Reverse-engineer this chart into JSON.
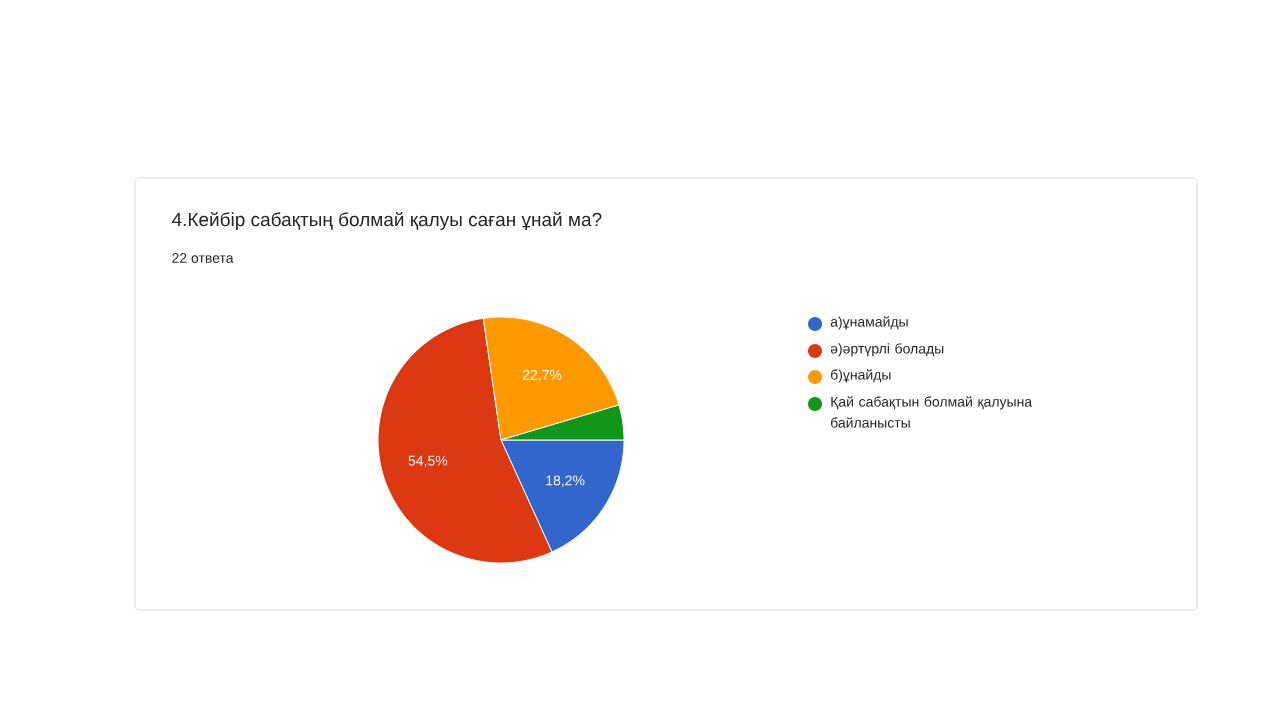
{
  "chart_data": {
    "type": "pie",
    "title": "4.Кейбір сабақтың болмай қалуы саған ұнай ма?",
    "subtitle": "22 ответа",
    "categories": [
      "а)ұнамайды",
      "ә)әртүрлі болады",
      "б)ұнайды",
      "Қай сабақтын болмай қалуына байланысты"
    ],
    "values": [
      18.2,
      54.5,
      22.7,
      4.6
    ],
    "colors": [
      "#3366cc",
      "#dc3912",
      "#ff9900",
      "#109618"
    ],
    "value_labels": [
      "18,2%",
      "54,5%",
      "22,7%",
      null
    ],
    "legend": "right"
  }
}
